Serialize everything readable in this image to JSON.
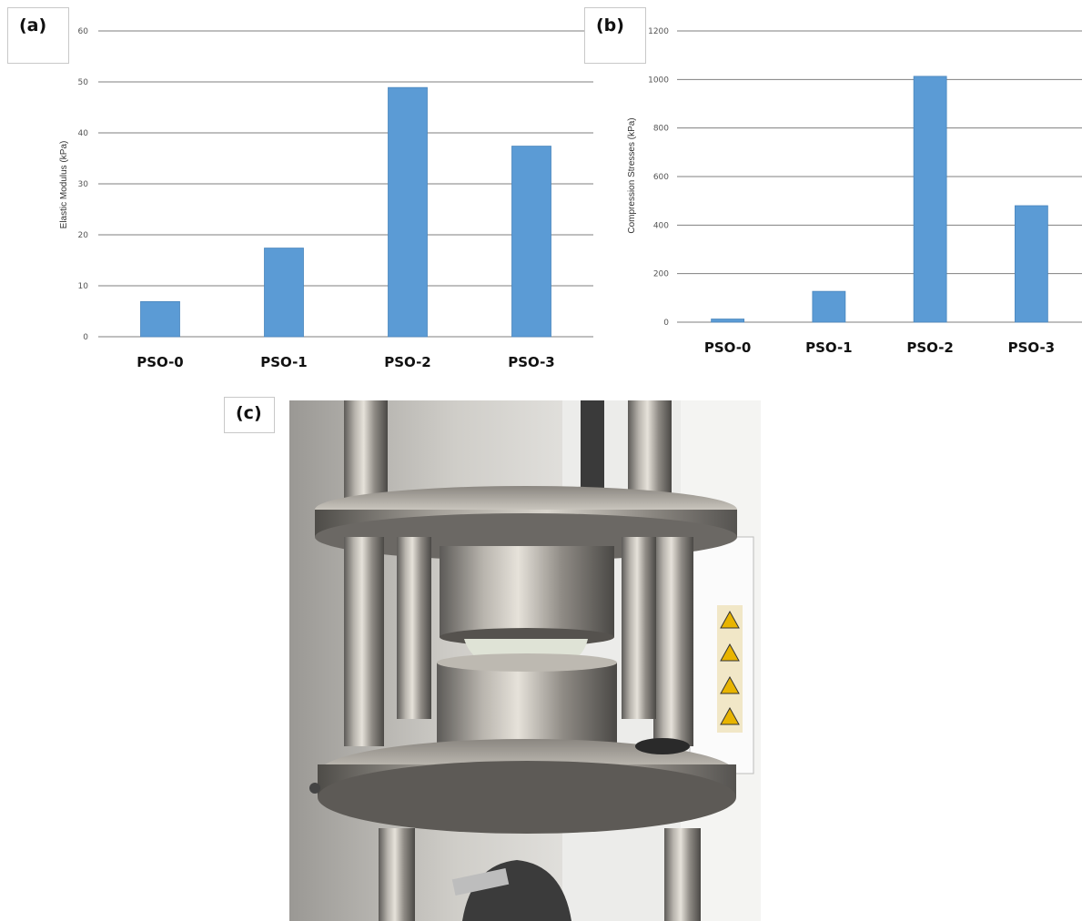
{
  "panels": {
    "a": "(a)",
    "b": "(b)",
    "c": "(c)"
  },
  "colors": {
    "bar": "#5b9bd5",
    "bar_edge": "#4a86bd",
    "grid": "#7f7f7f"
  },
  "chart_data": [
    {
      "type": "bar",
      "categories": [
        "PSO-0",
        "PSO-1",
        "PSO-2",
        "PSO-3"
      ],
      "values": [
        6.9,
        17.4,
        48.9,
        37.4
      ],
      "ylabel": "Elastic Modulus (kPa)",
      "xlabel": "",
      "ylim": [
        0,
        60
      ],
      "yticks": [
        0,
        10,
        20,
        30,
        40,
        50,
        60
      ],
      "grid": true
    },
    {
      "type": "bar",
      "categories": [
        "PSO-0",
        "PSO-1",
        "PSO-2",
        "PSO-3"
      ],
      "values": [
        13,
        127,
        1013,
        480
      ],
      "ylabel": "Compression Stresses (kPa)",
      "xlabel": "",
      "ylim": [
        0,
        1200
      ],
      "yticks": [
        0,
        200,
        400,
        600,
        800,
        1000,
        1200
      ],
      "grid": true
    }
  ],
  "photo": {
    "description_icon": "compression-test-fixture-photo"
  }
}
